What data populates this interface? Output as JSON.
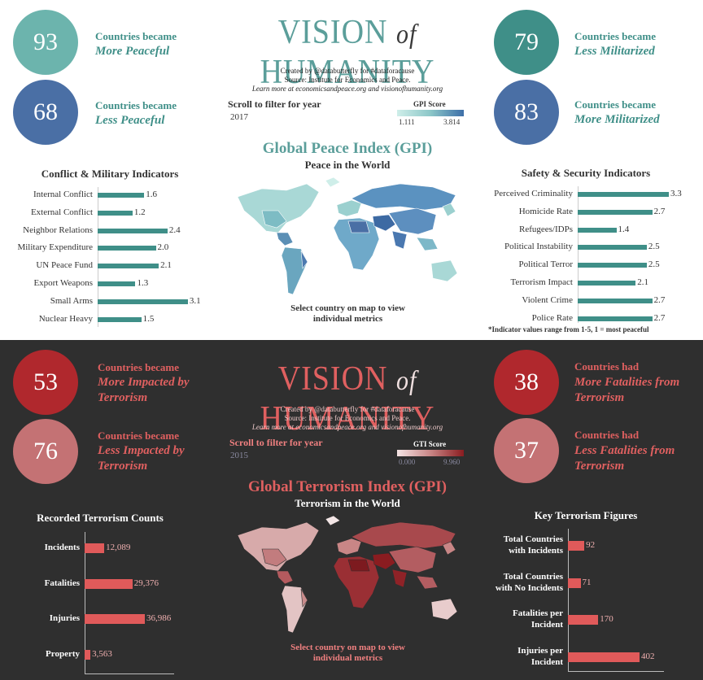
{
  "top": {
    "stats_left": [
      {
        "value": "93",
        "line1": "Countries became",
        "line2": "More Peaceful",
        "color": "#6cb4ad"
      },
      {
        "value": "68",
        "line1": "Countries became",
        "line2": "Less Peaceful",
        "color": "#4a6fa5"
      }
    ],
    "stats_right": [
      {
        "value": "79",
        "line1": "Countries became",
        "line2": "Less Militarized",
        "color": "#3f8f88"
      },
      {
        "value": "83",
        "line1": "Countries became",
        "line2": "More Militarized",
        "color": "#4a6fa5"
      }
    ],
    "logo": {
      "left": "VISION",
      "of": "of",
      "right": "HUMANITY"
    },
    "credit": {
      "line1": "Created by @databutterfly for #dataforacause",
      "line2": "Source: Institute for Economics and Peace.",
      "line3": "Learn more at economicsandpeace.org  and  visionofhumanity.org"
    },
    "filter": {
      "label": "Scroll to filter for year",
      "year": "2017"
    },
    "legend": {
      "title": "GPI Score",
      "min": "1.111",
      "max": "3.814"
    },
    "map": {
      "title": "Global Peace Index (GPI)",
      "subtitle": "Peace in the World",
      "hint": "Select country on map to view individual metrics"
    },
    "footnote": "*Indicator values range from 1-5, 1 = most peaceful",
    "colors": {
      "accent": "#5b9e9a",
      "bar": "#3f8f88",
      "text": "#2b2b2b",
      "label": "#2b6f70"
    }
  },
  "bottom": {
    "stats_left": [
      {
        "value": "53",
        "line1": "Countries became",
        "line2a": "More Impacted by",
        "line2b": "Terrorism",
        "color": "#b0282d"
      },
      {
        "value": "76",
        "line1": "Countries became",
        "line2a": "Less Impacted by",
        "line2b": "Terrorism",
        "color": "#c47274"
      }
    ],
    "stats_right": [
      {
        "value": "38",
        "line1": "Countries had",
        "line2a": "More Fatalities from",
        "line2b": "Terrorism",
        "color": "#b0282d"
      },
      {
        "value": "37",
        "line1": "Countries had",
        "line2a": "Less Fatalities from",
        "line2b": "Terrorism",
        "color": "#c47274"
      }
    ],
    "logo": {
      "left": "VISION",
      "of": "of",
      "right": "HUMANITY"
    },
    "credit": {
      "line1": "Created by @databutterfly for #dataforacause",
      "line2": "Source: Institute for Economics and Peace.",
      "line3": "Learn more at economicsandpeace.org  and  visionofhumanity.org"
    },
    "filter": {
      "label": "Scroll to filter for year",
      "year": "2015"
    },
    "legend": {
      "title": "GTI Score",
      "min": "0.000",
      "max": "9.960"
    },
    "map": {
      "title": "Global Terrorism Index (GPI)",
      "subtitle": "Terrorism in the World",
      "hint": "Select country on map to view individual metrics"
    },
    "colors": {
      "accent": "#e06060",
      "bar": "#e05a5a",
      "text": "#ffffff",
      "label": "#f08080"
    }
  },
  "chart_data": [
    {
      "type": "bar",
      "title": "Conflict & Military Indicators",
      "categories": [
        "Internal Conflict",
        "External Conflict",
        "Neighbor Relations",
        "Military Expenditure",
        "UN Peace Fund",
        "Export Weapons",
        "Small Arms",
        "Nuclear Heavy"
      ],
      "values": [
        1.6,
        1.2,
        2.4,
        2.0,
        2.1,
        1.3,
        3.1,
        1.5
      ],
      "labels": [
        "1.6",
        "1.2",
        "2.4",
        "2.0",
        "2.1",
        "1.3",
        "3.1",
        "1.5"
      ],
      "xlim": [
        0,
        3.3
      ]
    },
    {
      "type": "bar",
      "title": "Safety & Security Indicators",
      "categories": [
        "Perceived Criminality",
        "Homicide Rate",
        "Refugees/IDPs",
        "Political Instability",
        "Political Terror",
        "Terrorism Impact",
        "Violent Crime",
        "Police Rate"
      ],
      "values": [
        3.3,
        2.7,
        1.4,
        2.5,
        2.5,
        2.1,
        2.7,
        2.7
      ],
      "labels": [
        "3.3",
        "2.7",
        "1.4",
        "2.5",
        "2.5",
        "2.1",
        "2.7",
        "2.7"
      ],
      "xlim": [
        0,
        3.3
      ]
    },
    {
      "type": "bar",
      "title": "Recorded Terrorism Counts",
      "categories": [
        "Incidents",
        "Fatalities",
        "Injuries",
        "Property"
      ],
      "values": [
        12089,
        29376,
        36986,
        3563
      ],
      "labels": [
        "12,089",
        "29,376",
        "36,986",
        "3,563"
      ],
      "xlim": [
        0,
        36986
      ]
    },
    {
      "type": "bar",
      "title": "Key Terrorism Figures",
      "categories": [
        [
          "Total Countries",
          "with Incidents"
        ],
        [
          "Total Countries",
          "with No Incidents"
        ],
        [
          "Fatalities per",
          "Incident"
        ],
        [
          "Injuries per",
          "Incident"
        ]
      ],
      "values": [
        92,
        71,
        170,
        402
      ],
      "labels": [
        "92",
        "71",
        "170",
        "402"
      ],
      "xlim": [
        0,
        402
      ]
    }
  ]
}
